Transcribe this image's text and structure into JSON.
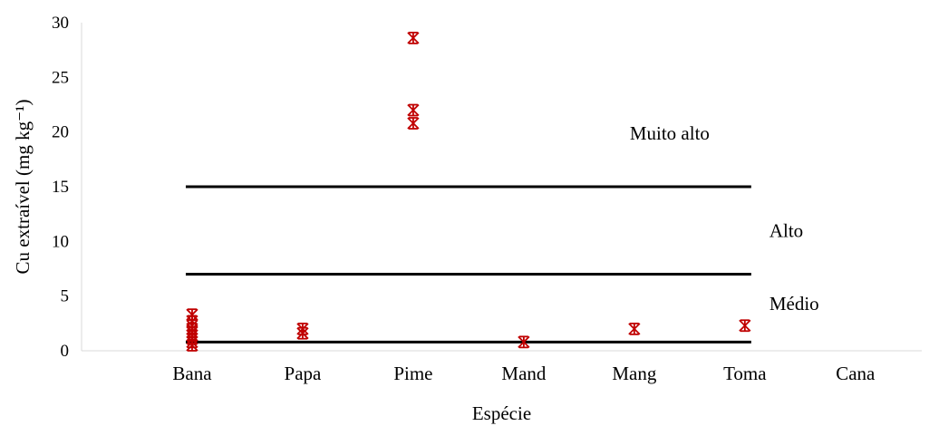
{
  "chart_data": {
    "type": "scatter",
    "title": "",
    "xlabel": "Espécie",
    "ylabel": "Cu extraível (mg kg⁻¹)",
    "ylim": [
      0,
      30
    ],
    "yticks": [
      0,
      5,
      10,
      15,
      20,
      25,
      30
    ],
    "categories": [
      "Bana",
      "Papa",
      "Pime",
      "Mand",
      "Mang",
      "Toma",
      "Cana"
    ],
    "grid": false,
    "marker": "asterisk",
    "marker_color": "#C00000",
    "points": [
      {
        "category": "Bana",
        "y": 0.5
      },
      {
        "category": "Bana",
        "y": 0.8
      },
      {
        "category": "Bana",
        "y": 1.1
      },
      {
        "category": "Bana",
        "y": 1.4
      },
      {
        "category": "Bana",
        "y": 1.7
      },
      {
        "category": "Bana",
        "y": 2.0
      },
      {
        "category": "Bana",
        "y": 2.3
      },
      {
        "category": "Bana",
        "y": 2.7
      },
      {
        "category": "Bana",
        "y": 3.3
      },
      {
        "category": "Papa",
        "y": 1.6
      },
      {
        "category": "Papa",
        "y": 2.0
      },
      {
        "category": "Pime",
        "y": 20.8
      },
      {
        "category": "Pime",
        "y": 22.0
      },
      {
        "category": "Pime",
        "y": 28.6
      },
      {
        "category": "Mand",
        "y": 0.8
      },
      {
        "category": "Mang",
        "y": 2.0
      },
      {
        "category": "Toma",
        "y": 2.3
      }
    ],
    "threshold_lines": [
      {
        "y": 0.8,
        "from": "Bana",
        "to": "Toma"
      },
      {
        "y": 7.0,
        "from": "Bana",
        "to": "Toma"
      },
      {
        "y": 15.0,
        "from": "Bana",
        "to": "Toma"
      }
    ],
    "band_labels": [
      {
        "text": "Médio",
        "y": 4.3
      },
      {
        "text": "Alto",
        "y": 11.0
      },
      {
        "text": "Muito alto",
        "y": 19.9
      }
    ]
  }
}
